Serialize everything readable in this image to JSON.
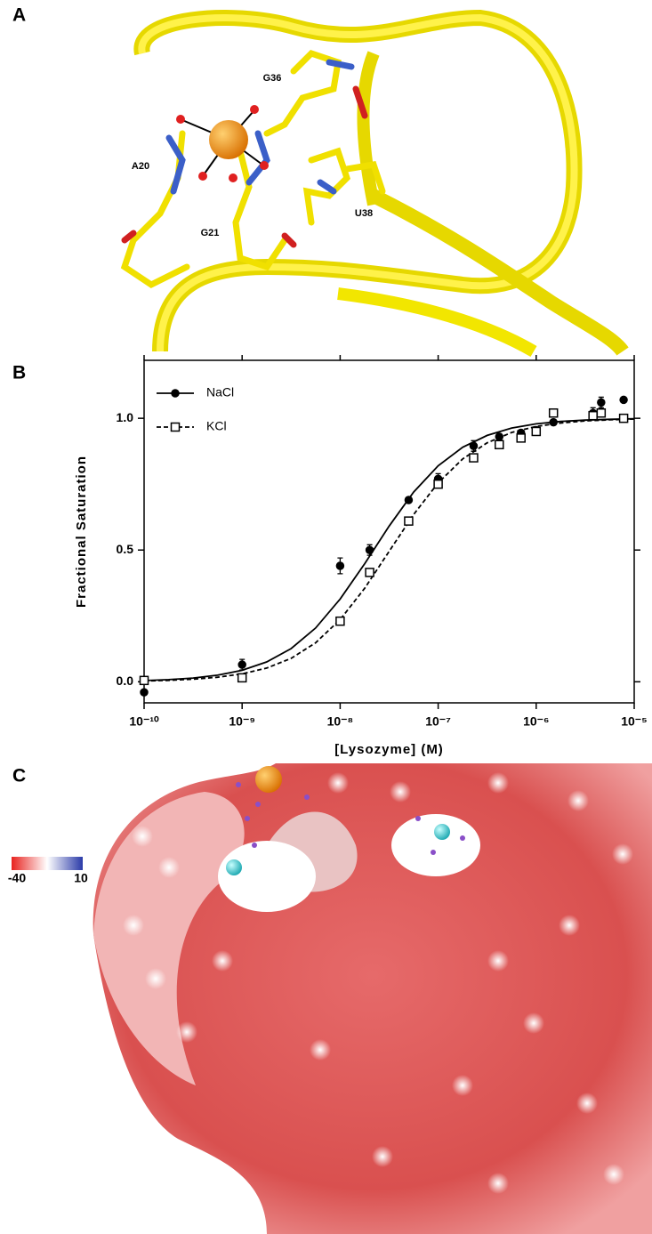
{
  "panel_labels": [
    "A",
    "B",
    "C"
  ],
  "structure_labels": [
    "G36",
    "A20",
    "G21",
    "U38"
  ],
  "chart_data": {
    "type": "scatter",
    "x_label": "[Lysozyme] (M)",
    "y_label": "Fractional Saturation",
    "log_x": true,
    "xlim": [
      1e-10,
      1e-05
    ],
    "xticks": [
      {
        "value": 1e-10,
        "label": "10⁻¹⁰"
      },
      {
        "value": 1e-09,
        "label": "10⁻⁹"
      },
      {
        "value": 1e-08,
        "label": "10⁻⁸"
      },
      {
        "value": 1e-07,
        "label": "10⁻⁷"
      },
      {
        "value": 1e-06,
        "label": "10⁻⁶"
      },
      {
        "value": 1e-05,
        "label": "10⁻⁵"
      }
    ],
    "ylim": [
      -0.08,
      1.22
    ],
    "yticks": [
      {
        "value": 0,
        "label": "0.0"
      },
      {
        "value": 0.5,
        "label": "0.5"
      },
      {
        "value": 1,
        "label": "1.0"
      }
    ],
    "legend": "upper left",
    "series": [
      {
        "name": "NaCl",
        "color": "#000000",
        "marker": "circle",
        "marker_fill": "#000000",
        "dashed": false,
        "x": [
          1e-10,
          1e-09,
          1e-08,
          2e-08,
          5e-08,
          1e-07,
          2.3e-07,
          4.2e-07,
          7e-07,
          1e-06,
          1.5e-06,
          3.8e-06,
          4.6e-06,
          7.8e-06
        ],
        "values": [
          -0.04,
          0.065,
          0.44,
          0.5,
          0.69,
          0.77,
          0.895,
          0.93,
          0.945,
          0.955,
          0.985,
          1.02,
          1.06,
          1.07
        ],
        "errors": [
          0.005,
          0.02,
          0.03,
          0.02,
          0.01,
          0.02,
          0.02,
          0.01,
          0.01,
          0.01,
          0.005,
          0.02,
          0.02,
          0.005
        ],
        "fit": {
          "x": [
            1e-10,
            1.78e-10,
            3.16e-10,
            5.62e-10,
            1e-09,
            1.78e-09,
            3.16e-09,
            5.62e-09,
            1e-08,
            1.78e-08,
            3.16e-08,
            5.62e-08,
            1e-07,
            1.78e-07,
            3.16e-07,
            5.62e-07,
            1e-06,
            1.78e-06,
            3.16e-06,
            5.62e-06,
            1e-05
          ],
          "values": [
            0.0045,
            0.008,
            0.0143,
            0.0251,
            0.0437,
            0.0752,
            0.126,
            0.204,
            0.314,
            0.448,
            0.591,
            0.72,
            0.82,
            0.89,
            0.935,
            0.963,
            0.979,
            0.988,
            0.993,
            0.996,
            0.998
          ]
        }
      },
      {
        "name": "KCl",
        "color": "#000000",
        "marker": "square",
        "marker_fill": "#ffffff",
        "dashed": true,
        "x": [
          1e-10,
          1e-09,
          1e-08,
          2e-08,
          5e-08,
          1e-07,
          2.3e-07,
          4.2e-07,
          7e-07,
          1e-06,
          1.5e-06,
          3.8e-06,
          4.6e-06,
          7.8e-06
        ],
        "values": [
          0.005,
          0.015,
          0.23,
          0.415,
          0.61,
          0.75,
          0.85,
          0.9,
          0.925,
          0.95,
          1.02,
          1.01,
          1.02,
          1.0
        ],
        "fit": {
          "x": [
            1e-10,
            1.78e-10,
            3.16e-10,
            5.62e-10,
            1e-09,
            1.78e-09,
            3.16e-09,
            5.62e-09,
            1e-08,
            1.78e-08,
            3.16e-08,
            5.62e-08,
            1e-07,
            1.78e-07,
            3.16e-07,
            5.62e-07,
            1e-06,
            1.78e-06,
            3.16e-06,
            5.62e-06,
            1e-05
          ],
          "values": [
            0.0031,
            0.0055,
            0.0097,
            0.0171,
            0.03,
            0.052,
            0.089,
            0.148,
            0.236,
            0.355,
            0.495,
            0.635,
            0.755,
            0.846,
            0.907,
            0.946,
            0.969,
            0.982,
            0.99,
            0.994,
            0.997
          ]
        }
      }
    ]
  },
  "colorbar": {
    "range": [
      -40,
      10
    ],
    "colors": [
      "#e8231f",
      "#ffffff",
      "#2a3aa8"
    ]
  }
}
